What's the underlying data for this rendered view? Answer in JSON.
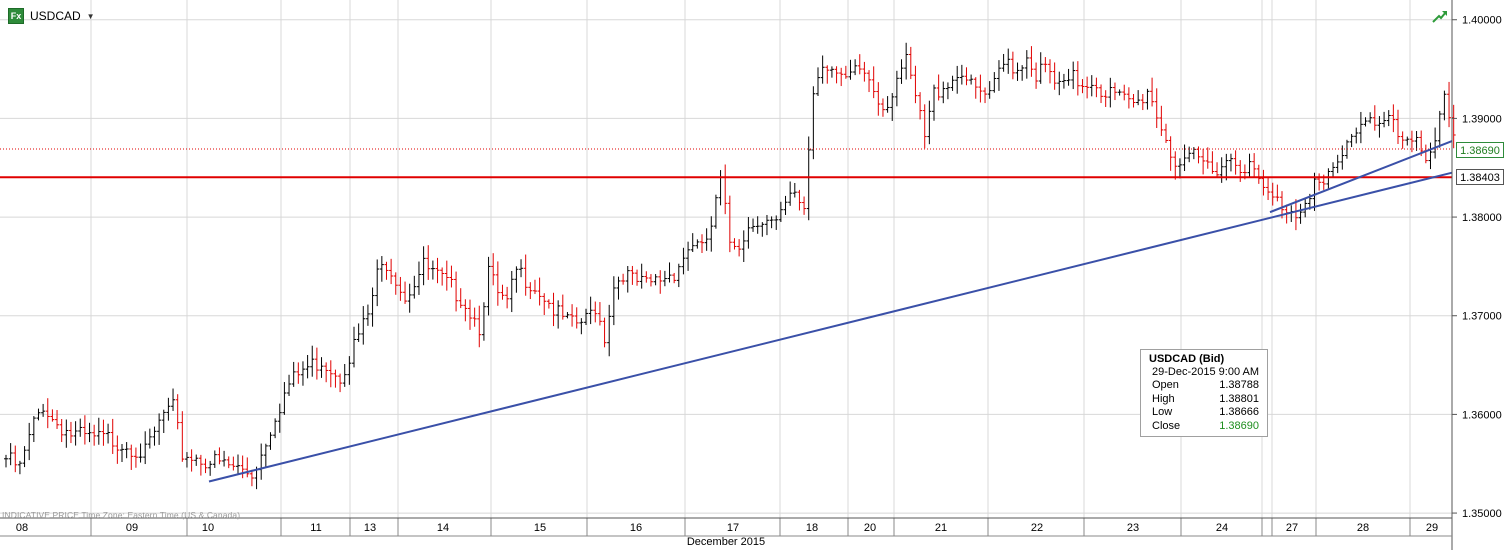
{
  "header": {
    "symbol": "USDCAD",
    "fx_badge": "Fx",
    "caret_icon": "caret-down-icon",
    "trend_icon": "trend-up-arrow-icon"
  },
  "footer": {
    "note": "INDICATIVE PRICE   Time Zone: Eastern Time (US & Canada)",
    "month_label": "December 2015"
  },
  "price_badges": {
    "current": "1.38690",
    "level": "1.38403"
  },
  "tooltip": {
    "title": "USDCAD (Bid)",
    "datetime": "29-Dec-2015 9:00 AM",
    "open_label": "Open",
    "open": "1.38788",
    "high_label": "High",
    "high": "1.38801",
    "low_label": "Low",
    "low": "1.38666",
    "close_label": "Close",
    "close": "1.38690"
  },
  "colors": {
    "up_bar": "#000000",
    "down_bar": "#e00000",
    "support_line": "#e00000",
    "trend_line": "#3a50a8",
    "grid": "#d8d8d8",
    "current_price_badge": "#1f7d1f"
  },
  "chart_data": {
    "type": "ohlc",
    "symbol": "USDCAD",
    "ylim": [
      1.3495,
      1.402
    ],
    "y_ticks": [
      "1.35000",
      "1.36000",
      "1.37000",
      "1.38000",
      "1.39000",
      "1.40000"
    ],
    "x_ticks": [
      "08",
      "09",
      "10",
      "11",
      "13",
      "14",
      "15",
      "16",
      "17",
      "18",
      "20",
      "21",
      "22",
      "23",
      "24",
      "27",
      "28",
      "29"
    ],
    "x_label": "December 2015",
    "horizontal_lines": [
      {
        "value": 1.38403,
        "style": "solid"
      },
      {
        "value": 1.3869,
        "style": "dotted"
      }
    ],
    "trend_lines": [
      {
        "from": [
          "10",
          1.3532
        ],
        "to": [
          "29",
          1.3845
        ]
      },
      {
        "from": [
          "27",
          1.3805
        ],
        "to": [
          "29",
          1.3877
        ]
      }
    ],
    "keypoints": [
      [
        0,
        1.3555
      ],
      [
        3,
        1.3545
      ],
      [
        6,
        1.359
      ],
      [
        8,
        1.361
      ],
      [
        10,
        1.3595
      ],
      [
        14,
        1.358
      ],
      [
        18,
        1.3575
      ],
      [
        22,
        1.3575
      ],
      [
        26,
        1.357
      ],
      [
        30,
        1.356
      ],
      [
        34,
        1.36
      ],
      [
        36,
        1.3605
      ],
      [
        38,
        1.356
      ],
      [
        42,
        1.3555
      ],
      [
        46,
        1.355
      ],
      [
        50,
        1.3545
      ],
      [
        53,
        1.354
      ],
      [
        55,
        1.356
      ],
      [
        58,
        1.36
      ],
      [
        61,
        1.363
      ],
      [
        64,
        1.3645
      ],
      [
        68,
        1.3655
      ],
      [
        72,
        1.364
      ],
      [
        75,
        1.367
      ],
      [
        78,
        1.37
      ],
      [
        80,
        1.374
      ],
      [
        82,
        1.3755
      ],
      [
        84,
        1.374
      ],
      [
        86,
        1.372
      ],
      [
        88,
        1.3735
      ],
      [
        90,
        1.375
      ],
      [
        94,
        1.3735
      ],
      [
        98,
        1.372
      ],
      [
        100,
        1.3705
      ],
      [
        102,
        1.369
      ],
      [
        104,
        1.3745
      ],
      [
        106,
        1.372
      ],
      [
        108,
        1.371
      ],
      [
        110,
        1.3745
      ],
      [
        113,
        1.3735
      ],
      [
        116,
        1.372
      ],
      [
        119,
        1.37
      ],
      [
        122,
        1.369
      ],
      [
        125,
        1.3695
      ],
      [
        127,
        1.371
      ],
      [
        129,
        1.368
      ],
      [
        131,
        1.373
      ],
      [
        133,
        1.3745
      ],
      [
        135,
        1.3735
      ],
      [
        138,
        1.373
      ],
      [
        140,
        1.3735
      ],
      [
        142,
        1.374
      ],
      [
        144,
        1.3745
      ],
      [
        146,
        1.376
      ],
      [
        148,
        1.3775
      ],
      [
        150,
        1.3765
      ],
      [
        152,
        1.379
      ],
      [
        154,
        1.3835
      ],
      [
        156,
        1.3775
      ],
      [
        158,
        1.3775
      ],
      [
        160,
        1.379
      ],
      [
        162,
        1.38
      ],
      [
        164,
        1.3795
      ],
      [
        166,
        1.379
      ],
      [
        168,
        1.381
      ],
      [
        170,
        1.3825
      ],
      [
        172,
        1.381
      ],
      [
        174,
        1.393
      ],
      [
        176,
        1.396
      ],
      [
        178,
        1.395
      ],
      [
        180,
        1.3935
      ],
      [
        182,
        1.394
      ],
      [
        184,
        1.395
      ],
      [
        186,
        1.394
      ],
      [
        188,
        1.392
      ],
      [
        190,
        1.3915
      ],
      [
        192,
        1.3945
      ],
      [
        194,
        1.3955
      ],
      [
        196,
        1.392
      ],
      [
        198,
        1.388
      ],
      [
        200,
        1.3925
      ],
      [
        202,
        1.3935
      ],
      [
        204,
        1.394
      ],
      [
        206,
        1.395
      ],
      [
        208,
        1.393
      ],
      [
        210,
        1.3925
      ],
      [
        212,
        1.392
      ],
      [
        214,
        1.3945
      ],
      [
        216,
        1.396
      ],
      [
        218,
        1.395
      ],
      [
        220,
        1.3965
      ],
      [
        222,
        1.3945
      ],
      [
        224,
        1.395
      ],
      [
        226,
        1.3935
      ],
      [
        228,
        1.393
      ],
      [
        230,
        1.394
      ],
      [
        232,
        1.3935
      ],
      [
        234,
        1.394
      ],
      [
        236,
        1.393
      ],
      [
        238,
        1.3925
      ],
      [
        240,
        1.392
      ],
      [
        242,
        1.3915
      ],
      [
        244,
        1.3915
      ],
      [
        246,
        1.393
      ],
      [
        248,
        1.3905
      ],
      [
        250,
        1.388
      ],
      [
        252,
        1.3855
      ],
      [
        254,
        1.385
      ],
      [
        256,
        1.386
      ],
      [
        258,
        1.3855
      ],
      [
        260,
        1.385
      ],
      [
        262,
        1.3855
      ],
      [
        264,
        1.386
      ],
      [
        266,
        1.3855
      ],
      [
        268,
        1.385
      ],
      [
        270,
        1.3835
      ],
      [
        272,
        1.382
      ],
      [
        274,
        1.3815
      ],
      [
        276,
        1.381
      ],
      [
        278,
        1.3805
      ],
      [
        280,
        1.382
      ],
      [
        282,
        1.3835
      ],
      [
        284,
        1.383
      ],
      [
        286,
        1.3845
      ],
      [
        288,
        1.386
      ],
      [
        290,
        1.3885
      ],
      [
        292,
        1.3895
      ],
      [
        294,
        1.3905
      ],
      [
        296,
        1.3895
      ],
      [
        298,
        1.39
      ],
      [
        300,
        1.388
      ],
      [
        302,
        1.387
      ],
      [
        304,
        1.3875
      ],
      [
        306,
        1.3865
      ],
      [
        308,
        1.388
      ],
      [
        310,
        1.393
      ],
      [
        312,
        1.3879
      ]
    ]
  }
}
